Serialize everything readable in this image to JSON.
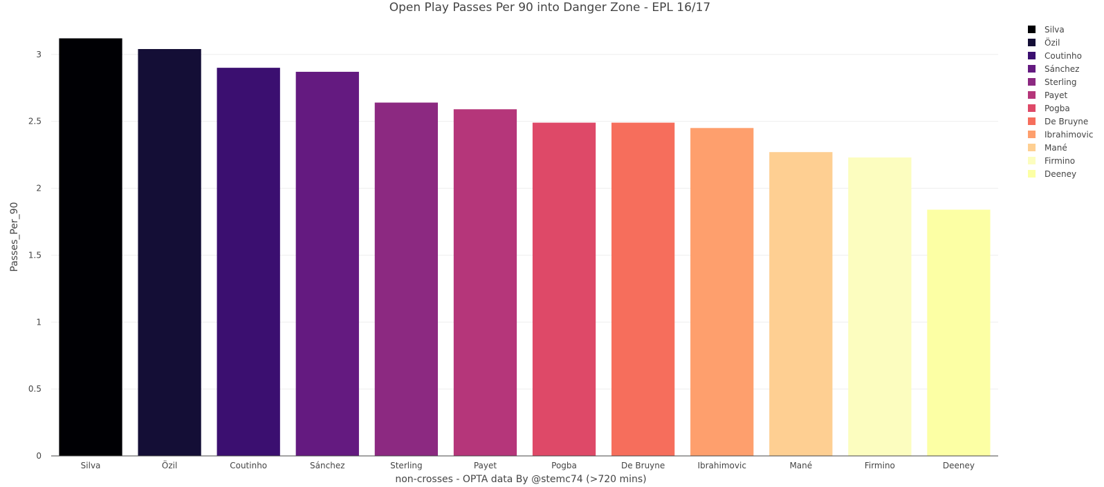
{
  "chart_data": {
    "type": "bar",
    "title": "Open Play Passes Per 90 into Danger Zone - EPL 16/17",
    "xlabel": "non-crosses - OPTA data By @stemc74 (>720 mins)",
    "ylabel": "Passes_Per_90",
    "ylim": [
      0,
      3.2
    ],
    "yticks": [
      0,
      0.5,
      1,
      1.5,
      2,
      2.5,
      3
    ],
    "grid": true,
    "legend_position": "top-right",
    "categories": [
      "Silva",
      "Özil",
      "Coutinho",
      "Sánchez",
      "Sterling",
      "Payet",
      "Pogba",
      "De Bruyne",
      "Ibrahimovic",
      "Mané",
      "Firmino",
      "Deeney"
    ],
    "values": [
      3.12,
      3.04,
      2.9,
      2.87,
      2.64,
      2.59,
      2.49,
      2.49,
      2.45,
      2.27,
      2.23,
      1.84
    ],
    "colors": [
      "#000004",
      "#140e36",
      "#3b0f70",
      "#641a80",
      "#8c2981",
      "#b5367a",
      "#de4968",
      "#f66e5c",
      "#fe9f6d",
      "#fecf92",
      "#fcfdbf",
      "#fcffa4"
    ]
  }
}
